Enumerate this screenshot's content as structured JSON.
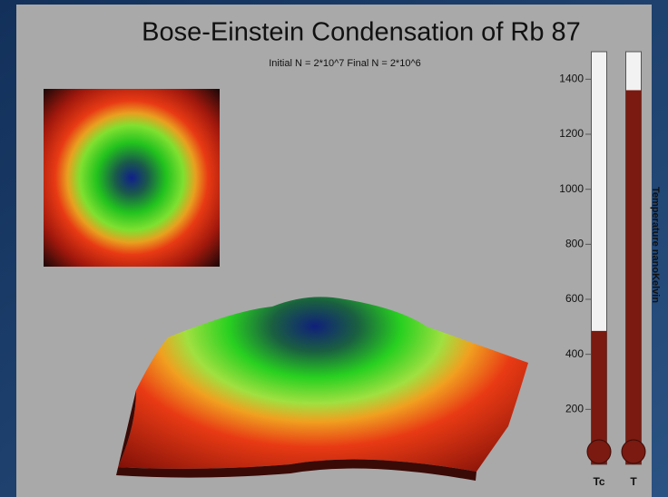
{
  "chart_data": {
    "type": "bar",
    "title": "Bose-Einstein Condensation of Rb 87",
    "subtitle": "Initial N = 2*10^7   Final N = 2*10^6",
    "y_label": "Temperature nanoKelvin",
    "categories": [
      "Tc",
      "T"
    ],
    "values": [
      485,
      1360
    ],
    "color": "#7a1a10",
    "ylim": [
      0,
      1500
    ],
    "yticks": [
      200,
      400,
      600,
      800,
      1000,
      1200,
      1400
    ],
    "grid": false
  }
}
